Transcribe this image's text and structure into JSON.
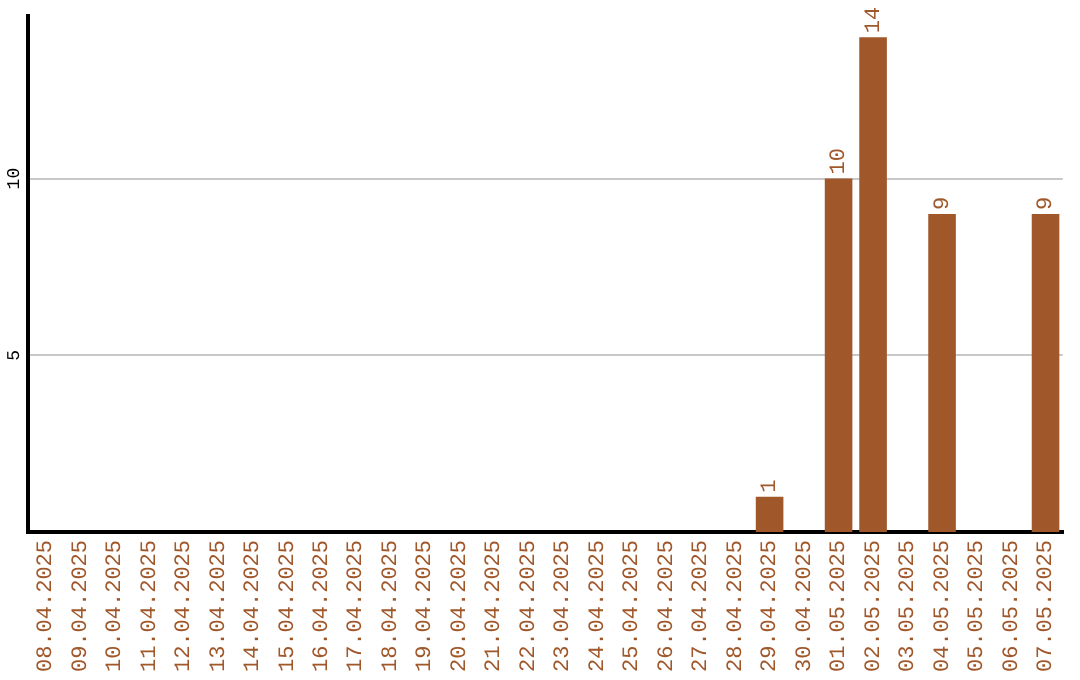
{
  "chart_data": {
    "type": "bar",
    "categories": [
      "08.04.2025",
      "09.04.2025",
      "10.04.2025",
      "11.04.2025",
      "12.04.2025",
      "13.04.2025",
      "14.04.2025",
      "15.04.2025",
      "16.04.2025",
      "17.04.2025",
      "18.04.2025",
      "19.04.2025",
      "20.04.2025",
      "21.04.2025",
      "22.04.2025",
      "23.04.2025",
      "24.04.2025",
      "25.04.2025",
      "26.04.2025",
      "27.04.2025",
      "28.04.2025",
      "29.04.2025",
      "30.04.2025",
      "01.05.2025",
      "02.05.2025",
      "03.05.2025",
      "04.05.2025",
      "05.05.2025",
      "06.05.2025",
      "07.05.2025"
    ],
    "values": [
      0,
      0,
      0,
      0,
      0,
      0,
      0,
      0,
      0,
      0,
      0,
      0,
      0,
      0,
      0,
      0,
      0,
      0,
      0,
      0,
      0,
      1,
      0,
      10,
      14,
      0,
      9,
      0,
      0,
      9
    ],
    "value_labels": [
      null,
      null,
      null,
      null,
      null,
      null,
      null,
      null,
      null,
      null,
      null,
      null,
      null,
      null,
      null,
      null,
      null,
      null,
      null,
      null,
      null,
      "1",
      null,
      "10",
      "14",
      null,
      "9",
      null,
      null,
      "9"
    ],
    "color": "#a0572a",
    "ylim": [
      0,
      14.6
    ],
    "yticks": [
      5,
      10
    ],
    "grid": "y",
    "legend": false
  }
}
